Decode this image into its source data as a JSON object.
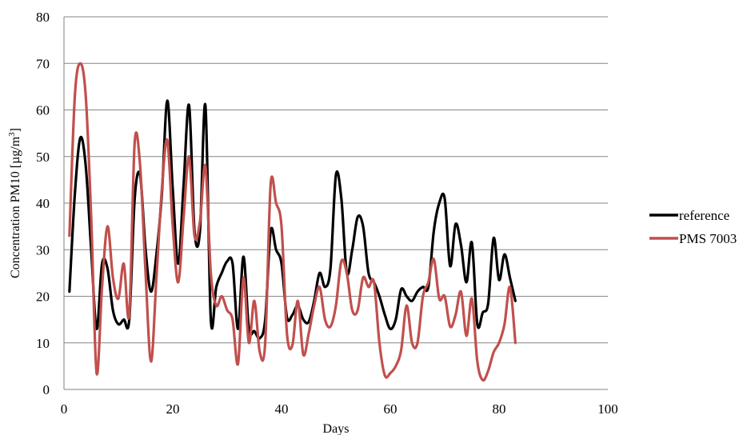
{
  "chart_data": {
    "type": "line",
    "title": "",
    "xlabel": "Days",
    "ylabel": "Concentration PM10 [µg/m",
    "ylabel_superscript": "3",
    "ylabel_suffix": "]",
    "xlim": [
      0,
      100
    ],
    "ylim": [
      0,
      80
    ],
    "xticks": [
      0,
      20,
      40,
      60,
      80,
      100
    ],
    "yticks": [
      0,
      10,
      20,
      30,
      40,
      50,
      60,
      70,
      80
    ],
    "grid": "horizontal",
    "legend_position": "right",
    "x": [
      1,
      2,
      3,
      4,
      5,
      6,
      7,
      8,
      9,
      10,
      11,
      12,
      13,
      14,
      15,
      16,
      17,
      18,
      19,
      20,
      21,
      22,
      23,
      24,
      25,
      26,
      27,
      28,
      29,
      30,
      31,
      32,
      33,
      34,
      35,
      36,
      37,
      38,
      39,
      40,
      41,
      42,
      43,
      44,
      45,
      46,
      47,
      48,
      49,
      50,
      51,
      52,
      53,
      54,
      55,
      56,
      57,
      58,
      59,
      60,
      61,
      62,
      63,
      64,
      65,
      66,
      67,
      68,
      69,
      70,
      71,
      72,
      73,
      74,
      75,
      76,
      77,
      78,
      79,
      80,
      81,
      82,
      83
    ],
    "series": [
      {
        "name": "reference",
        "color": "#000000",
        "values": [
          21,
          42,
          54,
          48,
          30,
          13,
          27,
          26,
          17,
          14,
          15,
          15,
          41,
          46,
          30,
          21,
          29,
          42,
          62,
          43,
          27,
          44,
          61,
          34,
          34,
          61,
          15,
          22,
          25,
          27.5,
          27,
          13,
          28.5,
          13,
          12.5,
          11,
          15,
          34,
          30,
          27,
          15.5,
          16,
          18,
          15,
          14.5,
          19,
          25,
          22,
          26,
          46,
          41,
          25,
          30,
          37,
          35,
          25,
          23,
          20,
          16,
          13,
          15,
          21.5,
          20,
          19,
          21,
          22,
          22,
          34,
          40,
          41,
          26.5,
          35.5,
          31,
          23,
          31.5,
          14,
          16.5,
          18.5,
          32.5,
          23.5,
          29,
          24,
          19
        ]
      },
      {
        "name": "PMS 7003",
        "color": "#c0504d",
        "values": [
          33,
          63,
          70,
          63,
          37,
          3.5,
          22,
          35,
          24,
          19.5,
          27,
          16,
          53,
          48,
          25,
          6,
          24,
          43,
          53.5,
          35,
          23,
          37,
          50,
          33,
          36,
          48,
          25,
          18,
          20,
          17,
          15,
          5.5,
          24,
          10,
          19,
          8,
          10,
          44,
          40,
          35,
          12,
          9.5,
          19,
          7.5,
          12,
          18,
          22,
          15,
          13.5,
          18,
          27.5,
          25,
          17,
          17,
          24,
          22,
          23,
          10,
          3,
          3.5,
          5,
          8.5,
          18,
          10,
          10,
          20,
          23,
          28,
          19.5,
          20,
          13.5,
          16,
          21,
          11.5,
          19.5,
          6,
          2,
          4,
          8,
          10,
          14,
          22,
          10
        ]
      }
    ]
  }
}
